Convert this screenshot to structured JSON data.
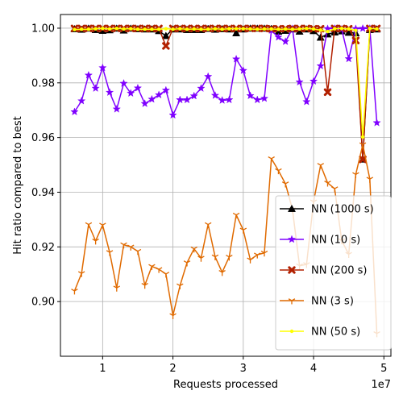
{
  "chart_data": {
    "type": "line",
    "title": "",
    "xlabel": "Requests processed",
    "ylabel": "Hit ratio compared to best",
    "x_offset_label": "1e7",
    "xlim": [
      0.4,
      5.1
    ],
    "ylim": [
      0.88,
      1.005
    ],
    "x_ticks": [
      1,
      2,
      3,
      4,
      5
    ],
    "y_ticks": [
      0.9,
      0.92,
      0.94,
      0.96,
      0.98,
      1.0
    ],
    "x_tick_labels": [
      "1",
      "2",
      "3",
      "4",
      "5"
    ],
    "y_tick_labels": [
      "0.90",
      "0.92",
      "0.94",
      "0.96",
      "0.98",
      "1.00"
    ],
    "grid": true,
    "legend_position": "lower-right",
    "x": [
      0.6,
      0.7,
      0.8,
      0.9,
      1.0,
      1.1,
      1.2,
      1.3,
      1.4,
      1.5,
      1.6,
      1.7,
      1.8,
      1.9,
      2.0,
      2.1,
      2.2,
      2.3,
      2.4,
      2.5,
      2.6,
      2.7,
      2.8,
      2.9,
      3.0,
      3.1,
      3.2,
      3.3,
      3.4,
      3.5,
      3.6,
      3.7,
      3.8,
      3.9,
      4.0,
      4.1,
      4.2,
      4.3,
      4.4,
      4.5,
      4.6,
      4.7,
      4.8,
      4.9
    ],
    "series": [
      {
        "name": "NN (1000 s)",
        "color": "#000000",
        "marker": "triangle",
        "values": [
          0.9997,
          0.9995,
          0.9999,
          0.9994,
          0.9991,
          0.9993,
          0.9999,
          0.9992,
          0.9999,
          0.9997,
          0.9996,
          0.9996,
          0.999,
          0.9972,
          0.9996,
          0.9996,
          0.9994,
          0.9994,
          0.9994,
          0.9998,
          0.9995,
          0.9997,
          0.9996,
          0.9982,
          0.9996,
          0.9999,
          0.9999,
          0.9999,
          0.9998,
          0.9988,
          0.9991,
          0.9996,
          0.9988,
          0.9996,
          0.999,
          0.9966,
          0.9978,
          0.9985,
          0.9989,
          0.9984,
          0.9982,
          0.952,
          0.9994,
          0.9996
        ]
      },
      {
        "name": "NN (10 s)",
        "color": "#7f00ff",
        "marker": "star",
        "values": [
          0.9694,
          0.9734,
          0.9828,
          0.978,
          0.9855,
          0.9765,
          0.9704,
          0.9798,
          0.9762,
          0.9781,
          0.9724,
          0.974,
          0.9756,
          0.9773,
          0.9682,
          0.9738,
          0.9738,
          0.9752,
          0.978,
          0.9823,
          0.9754,
          0.9736,
          0.9738,
          0.9887,
          0.9845,
          0.9753,
          0.9738,
          0.9743,
          0.9992,
          0.9967,
          0.9951,
          0.9998,
          0.9803,
          0.9731,
          0.9806,
          0.9862,
          0.9998,
          0.9999,
          0.9996,
          0.9888,
          0.9998,
          0.9999,
          0.9999,
          0.9654
        ]
      },
      {
        "name": "NN (200 s)",
        "color": "#b22000",
        "marker": "x",
        "values": [
          0.9999,
          0.9999,
          0.9999,
          0.9999,
          0.9999,
          0.9999,
          0.9999,
          0.9999,
          0.9999,
          0.9999,
          0.9999,
          0.9999,
          0.9999,
          0.9935,
          0.9999,
          0.9999,
          0.9999,
          0.9999,
          0.9999,
          0.9999,
          0.9999,
          0.9999,
          0.9999,
          0.9999,
          0.9999,
          0.9999,
          0.9999,
          0.9999,
          0.9998,
          0.9998,
          0.9998,
          0.9999,
          0.9999,
          0.9999,
          0.9998,
          0.9998,
          0.9766,
          0.9999,
          0.9999,
          0.9998,
          0.9955,
          0.952,
          0.9999,
          0.9999
        ]
      },
      {
        "name": "NN (3 s)",
        "color": "#e06a00",
        "marker": "tri_down",
        "values": [
          0.9039,
          0.9103,
          0.9282,
          0.9222,
          0.928,
          0.918,
          0.905,
          0.9208,
          0.92,
          0.9184,
          0.906,
          0.9129,
          0.9118,
          0.9101,
          0.8949,
          0.9058,
          0.9142,
          0.9193,
          0.9159,
          0.9282,
          0.9164,
          0.9107,
          0.9163,
          0.9317,
          0.9262,
          0.9153,
          0.9171,
          0.9178,
          0.9523,
          0.9479,
          0.9431,
          0.9337,
          0.9131,
          0.9136,
          0.9365,
          0.9499,
          0.9434,
          0.9413,
          0.9223,
          0.9173,
          0.9465,
          0.9574,
          0.9448,
          0.8883
        ]
      },
      {
        "name": "NN (50 s)",
        "color": "#ffff00",
        "marker": "point",
        "values": [
          0.9995,
          0.9996,
          0.9996,
          0.9998,
          0.9999,
          0.9997,
          0.9999,
          0.9997,
          0.9998,
          0.9996,
          0.9996,
          0.9996,
          0.9996,
          0.9998,
          0.9996,
          0.9998,
          0.9996,
          0.9997,
          0.9996,
          0.9996,
          0.9998,
          0.9996,
          0.9998,
          0.9998,
          0.9998,
          0.9997,
          0.9996,
          0.9997,
          0.9997,
          0.9996,
          0.9997,
          0.9996,
          0.9997,
          0.9999,
          0.9997,
          0.9993,
          0.9988,
          0.9998,
          0.9999,
          0.9997,
          0.9992,
          0.9602,
          0.9999,
          0.9997
        ]
      }
    ]
  }
}
